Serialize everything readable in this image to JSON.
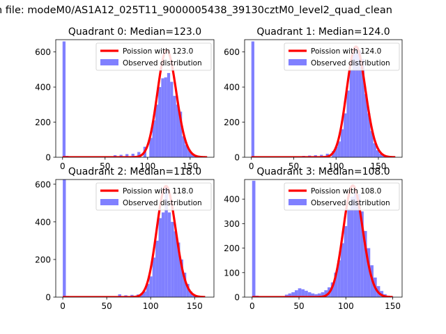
{
  "figure": {
    "suptitle": "n file: modeM0/AS1A12_025T11_9000005438_39130cztM0_level2_quad_clean"
  },
  "colors": {
    "poisson": "#ff0000",
    "observed": "#8080ff"
  },
  "chart_data": [
    {
      "type": "bar",
      "title": "Quadrant 0: Median=123.0",
      "xlim": [
        -8,
        178
      ],
      "ylim": [
        0,
        670
      ],
      "xticks": [
        0,
        50,
        100,
        150
      ],
      "yticks": [
        0,
        200,
        400,
        600
      ],
      "legend": {
        "placement": "top-right",
        "entries": [
          "Poission with 123.0",
          "Observed distribution"
        ]
      },
      "observed": {
        "name": "Observed distribution",
        "bin_width": 3.5,
        "bins": [
          [
            0,
            660
          ],
          [
            3.5,
            8
          ],
          [
            60,
            12
          ],
          [
            67,
            14
          ],
          [
            74,
            18
          ],
          [
            81,
            20
          ],
          [
            88,
            30
          ],
          [
            95,
            60
          ],
          [
            102,
            110
          ],
          [
            105.5,
            210
          ],
          [
            109,
            300
          ],
          [
            112.5,
            400
          ],
          [
            116,
            450
          ],
          [
            119.5,
            455
          ],
          [
            123,
            480
          ],
          [
            126.5,
            430
          ],
          [
            130,
            350
          ],
          [
            133.5,
            300
          ],
          [
            137,
            260
          ],
          [
            140.5,
            120
          ],
          [
            144,
            70
          ],
          [
            147.5,
            40
          ],
          [
            151,
            20
          ],
          [
            154.5,
            12
          ],
          [
            158,
            8
          ],
          [
            161.5,
            4
          ],
          [
            165,
            2
          ]
        ]
      },
      "poisson": {
        "name": "Poission with 123.0",
        "mean": 123.0,
        "peak": 610,
        "x_range": [
          0,
          170
        ]
      }
    },
    {
      "type": "bar",
      "title": "Quadrant 1: Median=124.0",
      "xlim": [
        -8,
        178
      ],
      "ylim": [
        0,
        670
      ],
      "xticks": [
        0,
        50,
        100,
        150
      ],
      "yticks": [
        0,
        200,
        400,
        600
      ],
      "legend": {
        "placement": "top-right",
        "entries": [
          "Poission with 124.0",
          "Observed distribution"
        ]
      },
      "observed": {
        "name": "Observed distribution",
        "bin_width": 3.5,
        "bins": [
          [
            0,
            660
          ],
          [
            3.5,
            6
          ],
          [
            60,
            8
          ],
          [
            67,
            10
          ],
          [
            74,
            12
          ],
          [
            81,
            14
          ],
          [
            88,
            20
          ],
          [
            95,
            35
          ],
          [
            98.5,
            60
          ],
          [
            102,
            90
          ],
          [
            105.5,
            160
          ],
          [
            109,
            250
          ],
          [
            112.5,
            380
          ],
          [
            116,
            500
          ],
          [
            119.5,
            590
          ],
          [
            123,
            630
          ],
          [
            126.5,
            610
          ],
          [
            130,
            560
          ],
          [
            133.5,
            360
          ],
          [
            137,
            250
          ],
          [
            140.5,
            150
          ],
          [
            144,
            80
          ],
          [
            147.5,
            40
          ],
          [
            151,
            20
          ],
          [
            154.5,
            10
          ],
          [
            158,
            5
          ]
        ]
      },
      "poisson": {
        "name": "Poission with 124.0",
        "mean": 124.0,
        "peak": 630,
        "x_range": [
          0,
          170
        ]
      }
    },
    {
      "type": "bar",
      "title": "Quadrant 2: Median=118.0",
      "xlim": [
        -8,
        172
      ],
      "ylim": [
        0,
        625
      ],
      "xticks": [
        0,
        50,
        100,
        150
      ],
      "yticks": [
        0,
        200,
        400,
        600
      ],
      "legend": {
        "placement": "top-right",
        "entries": [
          "Poission with 118.0",
          "Observed distribution"
        ]
      },
      "observed": {
        "name": "Observed distribution",
        "bin_width": 3.5,
        "bins": [
          [
            0,
            625
          ],
          [
            3.5,
            6
          ],
          [
            63,
            15
          ],
          [
            70,
            10
          ],
          [
            77,
            12
          ],
          [
            84,
            14
          ],
          [
            88,
            20
          ],
          [
            91.5,
            30
          ],
          [
            95,
            70
          ],
          [
            98.5,
            110
          ],
          [
            102,
            210
          ],
          [
            105.5,
            300
          ],
          [
            109,
            420
          ],
          [
            112.5,
            450
          ],
          [
            116,
            590
          ],
          [
            119.5,
            450
          ],
          [
            123,
            400
          ],
          [
            126.5,
            350
          ],
          [
            130,
            290
          ],
          [
            133.5,
            200
          ],
          [
            137,
            130
          ],
          [
            140.5,
            70
          ],
          [
            144,
            30
          ],
          [
            147.5,
            15
          ],
          [
            151,
            6
          ],
          [
            154.5,
            3
          ]
        ]
      },
      "poisson": {
        "name": "Poission with 118.0",
        "mean": 118.0,
        "peak": 590,
        "x_range": [
          0,
          162
        ]
      }
    },
    {
      "type": "bar",
      "title": "Quadrant 3: Median=108.0",
      "xlim": [
        -8,
        160
      ],
      "ylim": [
        0,
        480
      ],
      "xticks": [
        0,
        50,
        100,
        150
      ],
      "yticks": [
        0,
        100,
        200,
        300,
        400
      ],
      "legend": {
        "placement": "top-right",
        "entries": [
          "Poission with 108.0",
          "Observed distribution"
        ]
      },
      "observed": {
        "name": "Observed distribution",
        "bin_width": 3.5,
        "bins": [
          [
            0,
            475
          ],
          [
            3.5,
            6
          ],
          [
            35,
            10
          ],
          [
            38.5,
            15
          ],
          [
            42,
            20
          ],
          [
            45.5,
            28
          ],
          [
            49,
            36
          ],
          [
            52.5,
            32
          ],
          [
            56,
            26
          ],
          [
            59.5,
            20
          ],
          [
            63,
            15
          ],
          [
            66.5,
            12
          ],
          [
            70,
            15
          ],
          [
            73.5,
            20
          ],
          [
            77,
            28
          ],
          [
            80.5,
            40
          ],
          [
            84,
            60
          ],
          [
            87.5,
            100
          ],
          [
            91,
            150
          ],
          [
            94.5,
            220
          ],
          [
            98,
            290
          ],
          [
            101.5,
            360
          ],
          [
            105,
            410
          ],
          [
            108.5,
            440
          ],
          [
            112,
            420
          ],
          [
            115.5,
            350
          ],
          [
            119,
            270
          ],
          [
            122.5,
            200
          ],
          [
            126,
            130
          ],
          [
            129.5,
            80
          ],
          [
            133,
            45
          ],
          [
            136.5,
            25
          ],
          [
            140,
            12
          ],
          [
            143.5,
            6
          ],
          [
            147,
            3
          ]
        ]
      },
      "poisson": {
        "name": "Poission with 108.0",
        "mean": 108.0,
        "peak": 455,
        "x_range": [
          0,
          150
        ]
      }
    }
  ]
}
